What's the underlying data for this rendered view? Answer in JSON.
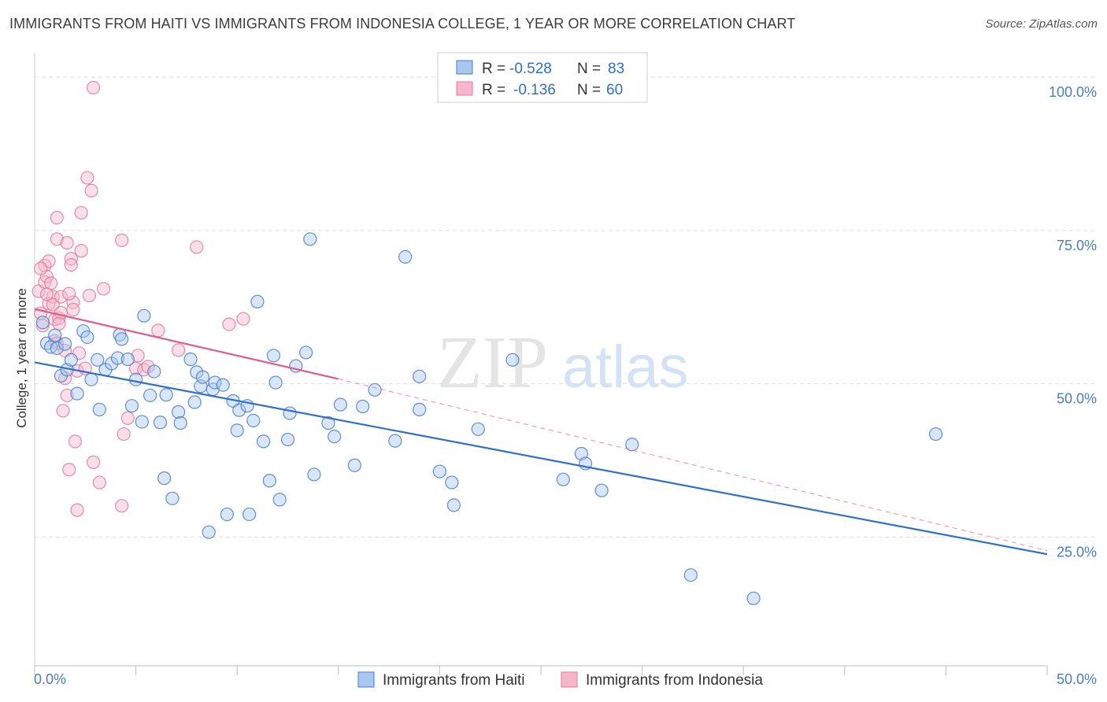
{
  "title": "IMMIGRANTS FROM HAITI VS IMMIGRANTS FROM INDONESIA COLLEGE, 1 YEAR OR MORE CORRELATION CHART",
  "source": "Source: ZipAtlas.com",
  "watermark": {
    "zip": "ZIP",
    "atlas": "atlas"
  },
  "colors": {
    "haiti_fill": "#a8c8f0",
    "haiti_stroke": "#4a7cc7",
    "haiti_line": "#2f6fcf",
    "indonesia_fill": "#f5b8cb",
    "indonesia_stroke": "#e0799c",
    "indonesia_line": "#e05b8a",
    "grid": "#dddddd",
    "label": "#4a7cc7"
  },
  "legend_top": {
    "rows": [
      {
        "r_label": "R =",
        "r_value": "-0.528",
        "n_label": "N =",
        "n_value": "83"
      },
      {
        "r_label": "R =",
        "r_value": "-0.136",
        "n_label": "N =",
        "n_value": "60"
      }
    ]
  },
  "legend_bottom": [
    "Immigrants from Haiti",
    "Immigrants from Indonesia"
  ],
  "chart_data": {
    "type": "scatter",
    "title": "IMMIGRANTS FROM HAITI VS IMMIGRANTS FROM INDONESIA COLLEGE, 1 YEAR OR MORE CORRELATION CHART",
    "xlabel": "",
    "ylabel": "College, 1 year or more",
    "xlim": [
      0,
      50
    ],
    "ylim": [
      4,
      104
    ],
    "x_tick_labels": [
      "0.0%",
      "50.0%"
    ],
    "y_ticks": [
      25,
      50,
      75,
      100
    ],
    "y_tick_labels": [
      "25.0%",
      "50.0%",
      "75.0%",
      "100.0%"
    ],
    "series": [
      {
        "name": "Immigrants from Haiti",
        "r": -0.528,
        "n": 83,
        "trend": {
          "x0": 0,
          "y0": 53.5,
          "x1": 50,
          "y1": 22.2
        },
        "points": [
          [
            0.4,
            60
          ],
          [
            0.6,
            56.6
          ],
          [
            0.8,
            56
          ],
          [
            1.0,
            57.9
          ],
          [
            1.1,
            55.8
          ],
          [
            1.3,
            51.3
          ],
          [
            1.5,
            56.5
          ],
          [
            1.6,
            52.3
          ],
          [
            1.8,
            53.9
          ],
          [
            2.1,
            48.4
          ],
          [
            2.4,
            58.6
          ],
          [
            2.6,
            57.6
          ],
          [
            2.8,
            50.7
          ],
          [
            3.1,
            53.9
          ],
          [
            3.2,
            45.8
          ],
          [
            3.5,
            52.3
          ],
          [
            3.8,
            53.3
          ],
          [
            4.1,
            54.2
          ],
          [
            4.2,
            58
          ],
          [
            4.3,
            57.3
          ],
          [
            4.6,
            54
          ],
          [
            4.8,
            46.4
          ],
          [
            5.0,
            50.7
          ],
          [
            5.3,
            43.8
          ],
          [
            5.4,
            61.1
          ],
          [
            5.7,
            48.1
          ],
          [
            5.9,
            52
          ],
          [
            6.2,
            43.7
          ],
          [
            6.4,
            34.6
          ],
          [
            6.5,
            48.2
          ],
          [
            6.8,
            31.3
          ],
          [
            7.1,
            45.4
          ],
          [
            7.2,
            43.6
          ],
          [
            7.7,
            54
          ],
          [
            7.9,
            47
          ],
          [
            8.0,
            51.9
          ],
          [
            8.2,
            49.6
          ],
          [
            8.3,
            51.1
          ],
          [
            8.6,
            25.8
          ],
          [
            8.8,
            49.1
          ],
          [
            8.9,
            50.2
          ],
          [
            9.3,
            49.8
          ],
          [
            9.5,
            28.7
          ],
          [
            9.8,
            47.2
          ],
          [
            10.0,
            42.4
          ],
          [
            10.1,
            45.7
          ],
          [
            10.5,
            46.4
          ],
          [
            10.6,
            28.7
          ],
          [
            10.8,
            44
          ],
          [
            11.0,
            63.4
          ],
          [
            11.3,
            40.6
          ],
          [
            11.6,
            34.2
          ],
          [
            11.8,
            54.6
          ],
          [
            11.9,
            50.2
          ],
          [
            12.1,
            31.1
          ],
          [
            12.5,
            40.9
          ],
          [
            12.6,
            45.2
          ],
          [
            12.9,
            52.9
          ],
          [
            13.4,
            55.1
          ],
          [
            13.6,
            73.6
          ],
          [
            13.8,
            35.2
          ],
          [
            14.5,
            43.6
          ],
          [
            14.8,
            41.4
          ],
          [
            15.1,
            46.6
          ],
          [
            15.8,
            36.7
          ],
          [
            16.2,
            46.3
          ],
          [
            16.8,
            49
          ],
          [
            17.8,
            40.7
          ],
          [
            18.3,
            70.7
          ],
          [
            19.0,
            45.8
          ],
          [
            19.0,
            51.2
          ],
          [
            20.0,
            35.7
          ],
          [
            20.6,
            33.9
          ],
          [
            20.7,
            30.2
          ],
          [
            21.9,
            42.6
          ],
          [
            23.6,
            53.9
          ],
          [
            26.1,
            34.4
          ],
          [
            27.0,
            38.6
          ],
          [
            27.2,
            37
          ],
          [
            28.0,
            32.6
          ],
          [
            29.5,
            40.1
          ],
          [
            32.4,
            18.8
          ],
          [
            35.5,
            15
          ],
          [
            44.5,
            41.8
          ]
        ]
      },
      {
        "name": "Immigrants from Indonesia",
        "r": -0.136,
        "n": 60,
        "trend": {
          "x0": 0,
          "y0": 62.2,
          "x1": 15,
          "y1": 50.8
        },
        "trend_dashed": {
          "x0": 15,
          "y0": 50.8,
          "x1": 50,
          "y1": 22.8
        },
        "points": [
          [
            0.2,
            65.1
          ],
          [
            0.3,
            61.5
          ],
          [
            0.4,
            59.5
          ],
          [
            0.5,
            69.3
          ],
          [
            0.5,
            66.6
          ],
          [
            0.6,
            67.5
          ],
          [
            0.7,
            63.1
          ],
          [
            0.7,
            70
          ],
          [
            0.8,
            66.4
          ],
          [
            0.9,
            64.2
          ],
          [
            0.9,
            62.9
          ],
          [
            1.0,
            60.5
          ],
          [
            1.0,
            57
          ],
          [
            1.1,
            77.1
          ],
          [
            1.1,
            73.6
          ],
          [
            1.1,
            56.6
          ],
          [
            1.2,
            60.7
          ],
          [
            1.3,
            64.2
          ],
          [
            1.3,
            61.6
          ],
          [
            1.4,
            45.6
          ],
          [
            1.5,
            50.9
          ],
          [
            1.5,
            55.4
          ],
          [
            1.6,
            73
          ],
          [
            1.6,
            48.1
          ],
          [
            1.7,
            36
          ],
          [
            1.8,
            70.4
          ],
          [
            1.8,
            69.4
          ],
          [
            1.9,
            63.3
          ],
          [
            1.9,
            62.1
          ],
          [
            2.0,
            40.6
          ],
          [
            2.1,
            52.1
          ],
          [
            2.1,
            29.4
          ],
          [
            2.2,
            55
          ],
          [
            2.3,
            71.7
          ],
          [
            2.3,
            77.9
          ],
          [
            2.5,
            52.5
          ],
          [
            2.6,
            83.6
          ],
          [
            2.8,
            81.5
          ],
          [
            2.7,
            64.4
          ],
          [
            2.9,
            37.2
          ],
          [
            2.9,
            98.3
          ],
          [
            3.2,
            33.9
          ],
          [
            3.4,
            65.5
          ],
          [
            4.3,
            73.4
          ],
          [
            4.3,
            30.1
          ],
          [
            4.4,
            41.8
          ],
          [
            4.6,
            44.4
          ],
          [
            5.0,
            52.5
          ],
          [
            5.1,
            54.6
          ],
          [
            5.4,
            52.3
          ],
          [
            5.6,
            52.8
          ],
          [
            6.1,
            58.7
          ],
          [
            7.1,
            55.5
          ],
          [
            8.0,
            72.3
          ],
          [
            9.6,
            59.7
          ],
          [
            10.3,
            60.6
          ],
          [
            0.3,
            68.8
          ],
          [
            0.6,
            64.6
          ],
          [
            1.2,
            59.8
          ],
          [
            1.7,
            64.7
          ]
        ]
      }
    ]
  }
}
